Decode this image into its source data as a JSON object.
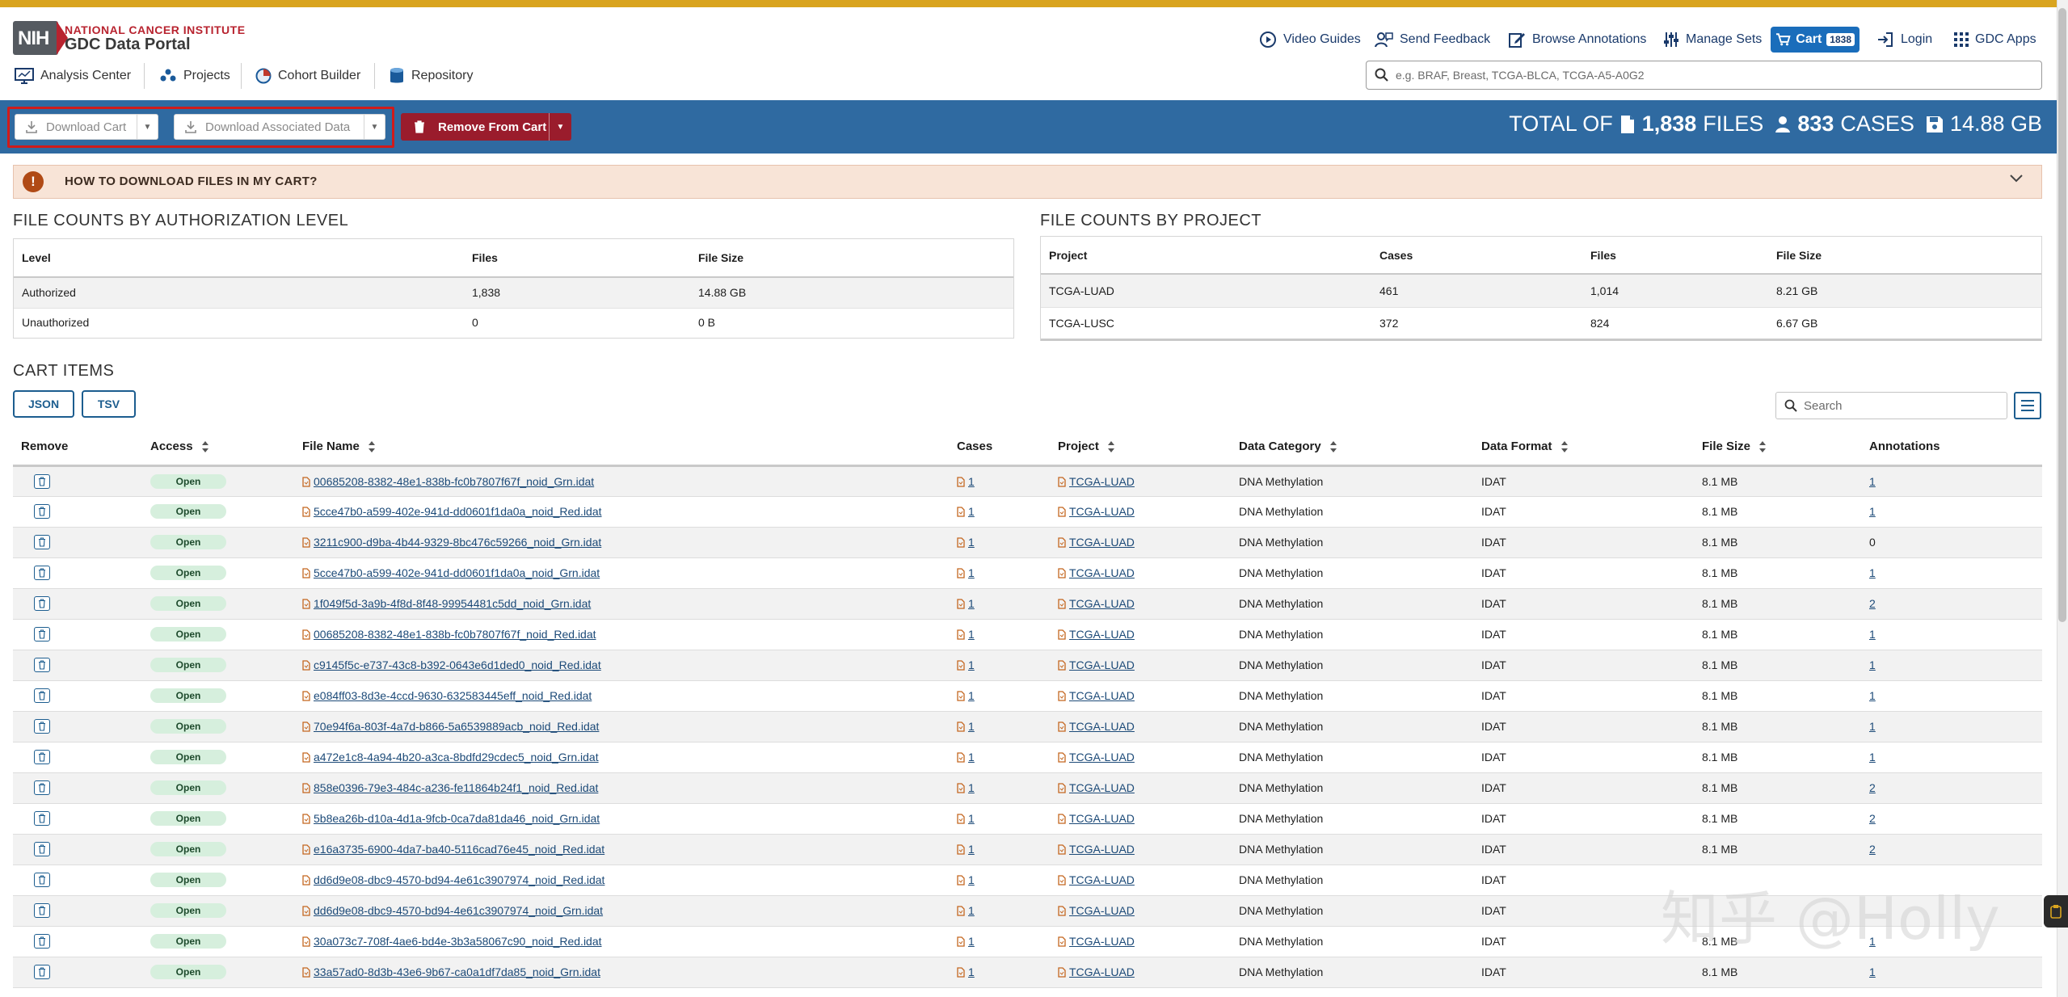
{
  "header": {
    "org_name": "NATIONAL CANCER INSTITUTE",
    "portal_name": "GDC Data Portal",
    "logo_text": "NIH",
    "nav": {
      "video_guides": "Video Guides",
      "send_feedback": "Send Feedback",
      "browse_annotations": "Browse Annotations",
      "manage_sets": "Manage Sets",
      "cart": "Cart",
      "cart_count": "1838",
      "login": "Login",
      "gdc_apps": "GDC Apps"
    },
    "subnav": {
      "analysis_center": "Analysis Center",
      "projects": "Projects",
      "cohort_builder": "Cohort Builder",
      "repository": "Repository"
    },
    "search_placeholder": "e.g. BRAF, Breast, TCGA-BLCA, TCGA-A5-A0G2"
  },
  "actions": {
    "download_cart": "Download Cart",
    "download_associated": "Download Associated Data",
    "remove_from_cart": "Remove From Cart"
  },
  "totals": {
    "prefix": "TOTAL OF",
    "files_count": "1,838",
    "files_label": "FILES",
    "cases_count": "833",
    "cases_label": "CASES",
    "size": "14.88 GB"
  },
  "banner": {
    "text": "HOW TO DOWNLOAD FILES IN MY CART?"
  },
  "auth_counts": {
    "title": "FILE COUNTS BY AUTHORIZATION LEVEL",
    "headers": [
      "Level",
      "Files",
      "File Size"
    ],
    "rows": [
      [
        "Authorized",
        "1,838",
        "14.88 GB"
      ],
      [
        "Unauthorized",
        "0",
        "0 B"
      ]
    ]
  },
  "project_counts": {
    "title": "FILE COUNTS BY PROJECT",
    "headers": [
      "Project",
      "Cases",
      "Files",
      "File Size"
    ],
    "rows": [
      [
        "TCGA-LUAD",
        "461",
        "1,014",
        "8.21 GB"
      ],
      [
        "TCGA-LUSC",
        "372",
        "824",
        "6.67 GB"
      ]
    ]
  },
  "cart_items": {
    "title": "CART ITEMS",
    "json_btn": "JSON",
    "tsv_btn": "TSV",
    "search_placeholder": "Search",
    "headers": {
      "remove": "Remove",
      "access": "Access",
      "file_name": "File Name",
      "cases": "Cases",
      "project": "Project",
      "data_category": "Data Category",
      "data_format": "Data Format",
      "file_size": "File Size",
      "annotations": "Annotations"
    },
    "rows": [
      {
        "access": "Open",
        "file": "00685208-8382-48e1-838b-fc0b7807f67f_noid_Grn.idat",
        "cases": "1",
        "project": "TCGA-LUAD",
        "category": "DNA Methylation",
        "format": "IDAT",
        "size": "8.1 MB",
        "annotations": "1"
      },
      {
        "access": "Open",
        "file": "5cce47b0-a599-402e-941d-dd0601f1da0a_noid_Red.idat",
        "cases": "1",
        "project": "TCGA-LUAD",
        "category": "DNA Methylation",
        "format": "IDAT",
        "size": "8.1 MB",
        "annotations": "1"
      },
      {
        "access": "Open",
        "file": "3211c900-d9ba-4b44-9329-8bc476c59266_noid_Grn.idat",
        "cases": "1",
        "project": "TCGA-LUAD",
        "category": "DNA Methylation",
        "format": "IDAT",
        "size": "8.1 MB",
        "annotations": "0"
      },
      {
        "access": "Open",
        "file": "5cce47b0-a599-402e-941d-dd0601f1da0a_noid_Grn.idat",
        "cases": "1",
        "project": "TCGA-LUAD",
        "category": "DNA Methylation",
        "format": "IDAT",
        "size": "8.1 MB",
        "annotations": "1"
      },
      {
        "access": "Open",
        "file": "1f049f5d-3a9b-4f8d-8f48-99954481c5dd_noid_Grn.idat",
        "cases": "1",
        "project": "TCGA-LUAD",
        "category": "DNA Methylation",
        "format": "IDAT",
        "size": "8.1 MB",
        "annotations": "2"
      },
      {
        "access": "Open",
        "file": "00685208-8382-48e1-838b-fc0b7807f67f_noid_Red.idat",
        "cases": "1",
        "project": "TCGA-LUAD",
        "category": "DNA Methylation",
        "format": "IDAT",
        "size": "8.1 MB",
        "annotations": "1"
      },
      {
        "access": "Open",
        "file": "c9145f5c-e737-43c8-b392-0643e6d1ded0_noid_Red.idat",
        "cases": "1",
        "project": "TCGA-LUAD",
        "category": "DNA Methylation",
        "format": "IDAT",
        "size": "8.1 MB",
        "annotations": "1"
      },
      {
        "access": "Open",
        "file": "e084ff03-8d3e-4ccd-9630-632583445eff_noid_Red.idat",
        "cases": "1",
        "project": "TCGA-LUAD",
        "category": "DNA Methylation",
        "format": "IDAT",
        "size": "8.1 MB",
        "annotations": "1"
      },
      {
        "access": "Open",
        "file": "70e94f6a-803f-4a7d-b866-5a6539889acb_noid_Red.idat",
        "cases": "1",
        "project": "TCGA-LUAD",
        "category": "DNA Methylation",
        "format": "IDAT",
        "size": "8.1 MB",
        "annotations": "1"
      },
      {
        "access": "Open",
        "file": "a472e1c8-4a94-4b20-a3ca-8bdfd29cdec5_noid_Grn.idat",
        "cases": "1",
        "project": "TCGA-LUAD",
        "category": "DNA Methylation",
        "format": "IDAT",
        "size": "8.1 MB",
        "annotations": "1"
      },
      {
        "access": "Open",
        "file": "858e0396-79e3-484c-a236-fe11864b24f1_noid_Red.idat",
        "cases": "1",
        "project": "TCGA-LUAD",
        "category": "DNA Methylation",
        "format": "IDAT",
        "size": "8.1 MB",
        "annotations": "2"
      },
      {
        "access": "Open",
        "file": "5b8ea26b-d10a-4d1a-9fcb-0ca7da81da46_noid_Grn.idat",
        "cases": "1",
        "project": "TCGA-LUAD",
        "category": "DNA Methylation",
        "format": "IDAT",
        "size": "8.1 MB",
        "annotations": "2"
      },
      {
        "access": "Open",
        "file": "e16a3735-6900-4da7-ba40-5116cad76e45_noid_Red.idat",
        "cases": "1",
        "project": "TCGA-LUAD",
        "category": "DNA Methylation",
        "format": "IDAT",
        "size": "8.1 MB",
        "annotations": "2"
      },
      {
        "access": "Open",
        "file": "dd6d9e08-dbc9-4570-bd94-4e61c3907974_noid_Red.idat",
        "cases": "1",
        "project": "TCGA-LUAD",
        "category": "DNA Methylation",
        "format": "IDAT",
        "size": "",
        "annotations": ""
      },
      {
        "access": "Open",
        "file": "dd6d9e08-dbc9-4570-bd94-4e61c3907974_noid_Grn.idat",
        "cases": "1",
        "project": "TCGA-LUAD",
        "category": "DNA Methylation",
        "format": "IDAT",
        "size": "",
        "annotations": ""
      },
      {
        "access": "Open",
        "file": "30a073c7-708f-4ae6-bd4e-3b3a58067c90_noid_Red.idat",
        "cases": "1",
        "project": "TCGA-LUAD",
        "category": "DNA Methylation",
        "format": "IDAT",
        "size": "8.1 MB",
        "annotations": "1"
      },
      {
        "access": "Open",
        "file": "33a57ad0-8d3b-43e6-9b67-ca0a1df7da85_noid_Grn.idat",
        "cases": "1",
        "project": "TCGA-LUAD",
        "category": "DNA Methylation",
        "format": "IDAT",
        "size": "8.1 MB",
        "annotations": "1"
      }
    ]
  },
  "watermark": "知乎 @Holly",
  "colors": {
    "accent_bar": "#d9a41f",
    "action_bar": "#2f6aa1",
    "remove_btn": "#9a1c2c",
    "cart_btn": "#1a6dbb",
    "banner_bg": "#f8e4d7",
    "open_badge": "#d6efdd",
    "highlight_frame": "#d01b1b"
  }
}
